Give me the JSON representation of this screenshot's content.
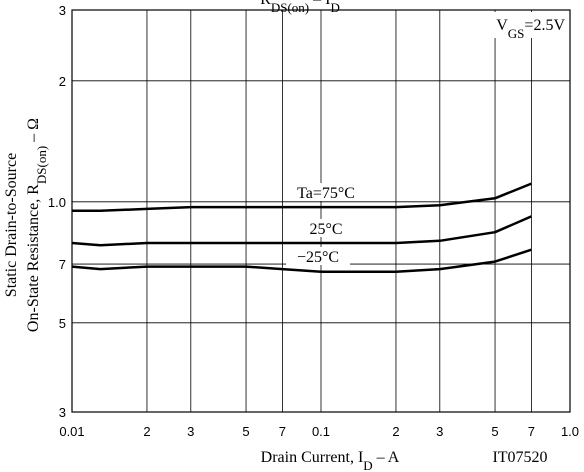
{
  "chart_data": {
    "type": "line",
    "title": [
      "R",
      "DS(on)",
      " – I",
      "D"
    ],
    "x_label": [
      "Drain Current, I",
      "D",
      "  –  A"
    ],
    "y_label": [
      [
        "Static Drain-to-Source"
      ],
      [
        "On-State Resistance, R",
        "DS(on)",
        "  –  Ω"
      ]
    ],
    "annotation": [
      "V",
      "GS",
      "=2.5V"
    ],
    "figure_id": "IT07520",
    "x_scale": "log",
    "y_scale": "log",
    "grid": true,
    "xlim": [
      0.01,
      1.0
    ],
    "ylim": [
      0.3,
      3
    ],
    "xticks": [
      0.01,
      {
        "value": 0.02,
        "label": "2"
      },
      {
        "value": 0.03,
        "label": "3"
      },
      {
        "value": 0.05,
        "label": "5"
      },
      {
        "value": 0.07,
        "label": "7"
      },
      0.1,
      {
        "value": 0.2,
        "label": "2"
      },
      {
        "value": 0.3,
        "label": "3"
      },
      {
        "value": 0.5,
        "label": "5"
      },
      {
        "value": 0.7,
        "label": "7"
      },
      {
        "value": 1.0,
        "label": "1.0"
      }
    ],
    "yticks": [
      3,
      2,
      {
        "value": 1.0,
        "label": "1.0"
      },
      {
        "value": 0.7,
        "label": "7"
      },
      {
        "value": 0.5,
        "label": "5"
      },
      {
        "value": 0.3,
        "label": "3"
      }
    ],
    "x": [
      0.01,
      0.013,
      0.02,
      0.03,
      0.05,
      0.07,
      0.1,
      0.2,
      0.3,
      0.5,
      0.7
    ],
    "series": [
      {
        "name": "Ta=75°C",
        "color": "#000000",
        "values": [
          0.95,
          0.95,
          0.96,
          0.97,
          0.97,
          0.97,
          0.97,
          0.97,
          0.98,
          1.02,
          1.11
        ]
      },
      {
        "name": "25°C",
        "color": "#000000",
        "values": [
          0.79,
          0.78,
          0.79,
          0.79,
          0.79,
          0.79,
          0.79,
          0.79,
          0.8,
          0.84,
          0.92
        ]
      },
      {
        "name": "−25°C",
        "color": "#000000",
        "values": [
          0.69,
          0.68,
          0.69,
          0.69,
          0.69,
          0.68,
          0.67,
          0.67,
          0.68,
          0.71,
          0.76
        ]
      }
    ]
  }
}
